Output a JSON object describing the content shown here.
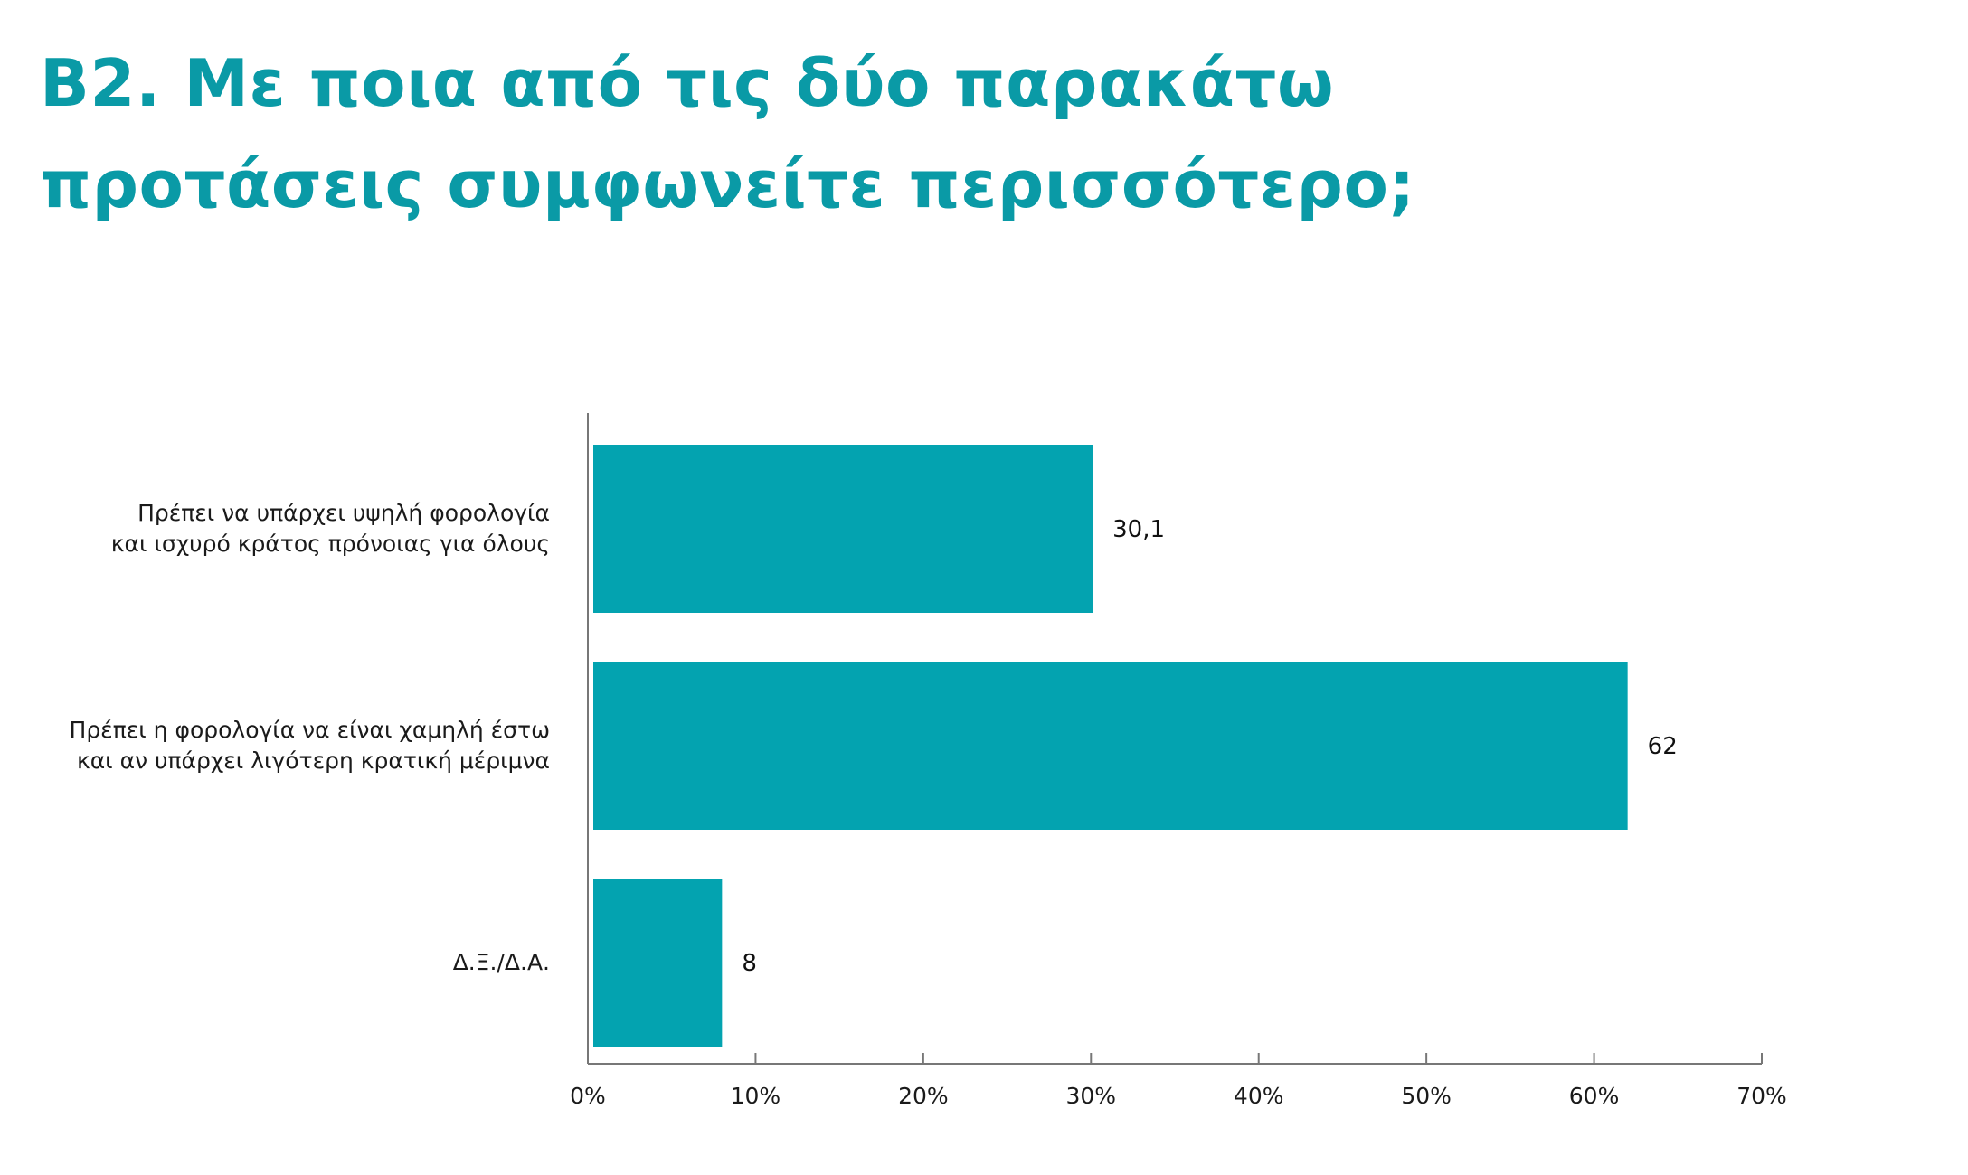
{
  "title_lines": [
    "B2. Με ποια από τις δύο παρακάτω",
    "προτάσεις συμφωνείτε περισσότερο;"
  ],
  "colors": {
    "title": "#0a9aa6",
    "bar": "#03a3b0",
    "axis": "#777777"
  },
  "chart_data": {
    "type": "bar",
    "orientation": "horizontal",
    "categories": [
      [
        "Πρέπει να υπάρχει υψηλή φορολογία",
        "και ισχυρό κράτος πρόνοιας για όλους"
      ],
      [
        "Πρέπει η φορολογία να είναι χαμηλή έστω",
        "και αν υπάρχει λιγότερη κρατική μέριμνα"
      ],
      [
        "Δ.Ξ./Δ.Α."
      ]
    ],
    "values": [
      30.1,
      62,
      8
    ],
    "value_labels": [
      "30,1",
      "62",
      "8"
    ],
    "xlim": [
      0,
      70
    ],
    "xticks": [
      0,
      10,
      20,
      30,
      40,
      50,
      60,
      70
    ],
    "xtick_labels": [
      "0%",
      "10%",
      "20%",
      "30%",
      "40%",
      "50%",
      "60%",
      "70%"
    ],
    "grid": false,
    "legend": "none"
  }
}
